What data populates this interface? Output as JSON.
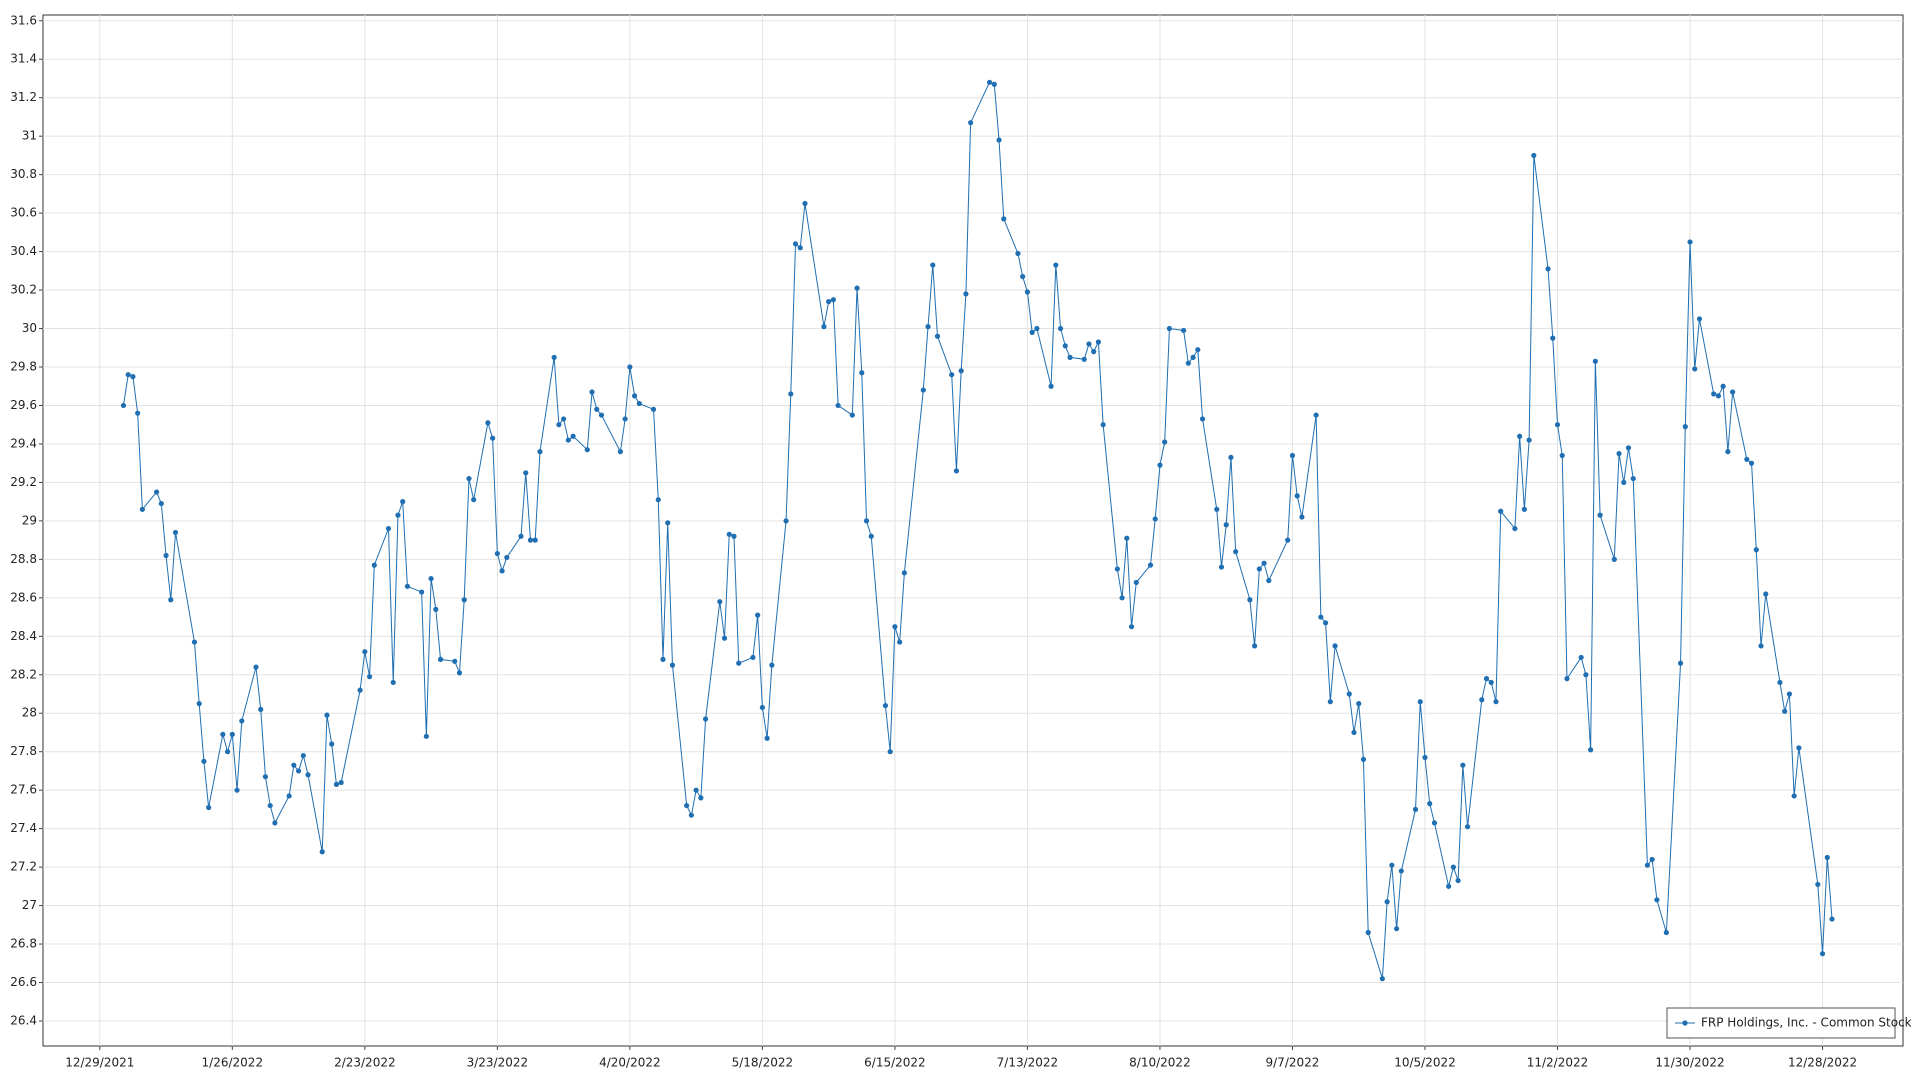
{
  "chart_data": {
    "type": "line",
    "x": [
      "2022-01-03",
      "2022-01-04",
      "2022-01-05",
      "2022-01-06",
      "2022-01-07",
      "2022-01-10",
      "2022-01-11",
      "2022-01-12",
      "2022-01-13",
      "2022-01-14",
      "2022-01-18",
      "2022-01-19",
      "2022-01-20",
      "2022-01-21",
      "2022-01-24",
      "2022-01-25",
      "2022-01-26",
      "2022-01-27",
      "2022-01-28",
      "2022-01-31",
      "2022-02-01",
      "2022-02-02",
      "2022-02-03",
      "2022-02-04",
      "2022-02-07",
      "2022-02-08",
      "2022-02-09",
      "2022-02-10",
      "2022-02-11",
      "2022-02-14",
      "2022-02-15",
      "2022-02-16",
      "2022-02-17",
      "2022-02-18",
      "2022-02-22",
      "2022-02-23",
      "2022-02-24",
      "2022-02-25",
      "2022-02-28",
      "2022-03-01",
      "2022-03-02",
      "2022-03-03",
      "2022-03-04",
      "2022-03-07",
      "2022-03-08",
      "2022-03-09",
      "2022-03-10",
      "2022-03-11",
      "2022-03-14",
      "2022-03-15",
      "2022-03-16",
      "2022-03-17",
      "2022-03-18",
      "2022-03-21",
      "2022-03-22",
      "2022-03-23",
      "2022-03-24",
      "2022-03-25",
      "2022-03-28",
      "2022-03-29",
      "2022-03-30",
      "2022-03-31",
      "2022-04-01",
      "2022-04-04",
      "2022-04-05",
      "2022-04-06",
      "2022-04-07",
      "2022-04-08",
      "2022-04-11",
      "2022-04-12",
      "2022-04-13",
      "2022-04-14",
      "2022-04-18",
      "2022-04-19",
      "2022-04-20",
      "2022-04-21",
      "2022-04-22",
      "2022-04-25",
      "2022-04-26",
      "2022-04-27",
      "2022-04-28",
      "2022-04-29",
      "2022-05-02",
      "2022-05-03",
      "2022-05-04",
      "2022-05-05",
      "2022-05-06",
      "2022-05-09",
      "2022-05-10",
      "2022-05-11",
      "2022-05-12",
      "2022-05-13",
      "2022-05-16",
      "2022-05-17",
      "2022-05-18",
      "2022-05-19",
      "2022-05-20",
      "2022-05-23",
      "2022-05-24",
      "2022-05-25",
      "2022-05-26",
      "2022-05-27",
      "2022-05-31",
      "2022-06-01",
      "2022-06-02",
      "2022-06-03",
      "2022-06-06",
      "2022-06-07",
      "2022-06-08",
      "2022-06-09",
      "2022-06-10",
      "2022-06-13",
      "2022-06-14",
      "2022-06-15",
      "2022-06-16",
      "2022-06-17",
      "2022-06-21",
      "2022-06-22",
      "2022-06-23",
      "2022-06-24",
      "2022-06-27",
      "2022-06-28",
      "2022-06-29",
      "2022-06-30",
      "2022-07-01",
      "2022-07-05",
      "2022-07-06",
      "2022-07-07",
      "2022-07-08",
      "2022-07-11",
      "2022-07-12",
      "2022-07-13",
      "2022-07-14",
      "2022-07-15",
      "2022-07-18",
      "2022-07-19",
      "2022-07-20",
      "2022-07-21",
      "2022-07-22",
      "2022-07-25",
      "2022-07-26",
      "2022-07-27",
      "2022-07-28",
      "2022-07-29",
      "2022-08-01",
      "2022-08-02",
      "2022-08-03",
      "2022-08-04",
      "2022-08-05",
      "2022-08-08",
      "2022-08-09",
      "2022-08-10",
      "2022-08-11",
      "2022-08-12",
      "2022-08-15",
      "2022-08-16",
      "2022-08-17",
      "2022-08-18",
      "2022-08-19",
      "2022-08-22",
      "2022-08-23",
      "2022-08-24",
      "2022-08-25",
      "2022-08-26",
      "2022-08-29",
      "2022-08-30",
      "2022-08-31",
      "2022-09-01",
      "2022-09-02",
      "2022-09-06",
      "2022-09-07",
      "2022-09-08",
      "2022-09-09",
      "2022-09-12",
      "2022-09-13",
      "2022-09-14",
      "2022-09-15",
      "2022-09-16",
      "2022-09-19",
      "2022-09-20",
      "2022-09-21",
      "2022-09-22",
      "2022-09-23",
      "2022-09-26",
      "2022-09-27",
      "2022-09-28",
      "2022-09-29",
      "2022-09-30",
      "2022-10-03",
      "2022-10-04",
      "2022-10-05",
      "2022-10-06",
      "2022-10-07",
      "2022-10-10",
      "2022-10-11",
      "2022-10-12",
      "2022-10-13",
      "2022-10-14",
      "2022-10-17",
      "2022-10-18",
      "2022-10-19",
      "2022-10-20",
      "2022-10-21",
      "2022-10-24",
      "2022-10-25",
      "2022-10-26",
      "2022-10-27",
      "2022-10-28",
      "2022-10-31",
      "2022-11-01",
      "2022-11-02",
      "2022-11-03",
      "2022-11-04",
      "2022-11-07",
      "2022-11-08",
      "2022-11-09",
      "2022-11-10",
      "2022-11-11",
      "2022-11-14",
      "2022-11-15",
      "2022-11-16",
      "2022-11-17",
      "2022-11-18",
      "2022-11-21",
      "2022-11-22",
      "2022-11-23",
      "2022-11-25",
      "2022-11-28",
      "2022-11-29",
      "2022-11-30",
      "2022-12-01",
      "2022-12-02",
      "2022-12-05",
      "2022-12-06",
      "2022-12-07",
      "2022-12-08",
      "2022-12-09",
      "2022-12-12",
      "2022-12-13",
      "2022-12-14",
      "2022-12-15",
      "2022-12-16",
      "2022-12-19",
      "2022-12-20",
      "2022-12-21",
      "2022-12-22",
      "2022-12-23",
      "2022-12-27",
      "2022-12-28",
      "2022-12-29",
      "2022-12-30"
    ],
    "series": [
      {
        "name": "FRP Holdings, Inc. - Common Stock",
        "color": "#1f6fb2",
        "values": [
          29.6,
          29.76,
          29.75,
          29.56,
          29.06,
          29.15,
          29.09,
          28.82,
          28.59,
          28.94,
          28.37,
          28.05,
          27.75,
          27.51,
          27.89,
          27.8,
          27.89,
          27.6,
          27.96,
          28.24,
          28.02,
          27.67,
          27.52,
          27.43,
          27.57,
          27.73,
          27.7,
          27.78,
          27.68,
          27.28,
          27.99,
          27.84,
          27.63,
          27.64,
          28.12,
          28.32,
          28.19,
          28.77,
          28.96,
          28.16,
          29.03,
          29.1,
          28.66,
          28.63,
          27.88,
          28.7,
          28.54,
          28.28,
          28.27,
          28.21,
          28.59,
          29.22,
          29.11,
          29.51,
          29.43,
          28.83,
          28.74,
          28.81,
          28.92,
          29.25,
          28.9,
          28.9,
          29.36,
          29.85,
          29.5,
          29.53,
          29.42,
          29.44,
          29.37,
          29.67,
          29.58,
          29.55,
          29.36,
          29.53,
          29.8,
          29.65,
          29.61,
          29.58,
          29.11,
          28.28,
          28.99,
          28.25,
          27.52,
          27.47,
          27.6,
          27.56,
          27.97,
          28.58,
          28.39,
          28.93,
          28.92,
          28.26,
          28.29,
          28.51,
          28.03,
          27.87,
          28.25,
          29.0,
          29.66,
          30.44,
          30.42,
          30.65,
          30.01,
          30.14,
          30.15,
          29.6,
          29.55,
          30.21,
          29.77,
          29.0,
          28.92,
          28.04,
          27.8,
          28.45,
          28.37,
          28.73,
          29.68,
          30.01,
          30.33,
          29.96,
          29.76,
          29.26,
          29.78,
          30.18,
          31.07,
          31.28,
          31.27,
          30.98,
          30.57,
          30.39,
          30.27,
          30.19,
          29.98,
          30.0,
          29.7,
          30.33,
          30.0,
          29.91,
          29.85,
          29.84,
          29.92,
          29.88,
          29.93,
          29.5,
          28.75,
          28.6,
          28.91,
          28.45,
          28.68,
          28.77,
          29.01,
          29.29,
          29.41,
          30.0,
          29.99,
          29.82,
          29.85,
          29.89,
          29.53,
          29.06,
          28.76,
          28.98,
          29.33,
          28.84,
          28.59,
          28.35,
          28.75,
          28.78,
          28.69,
          28.9,
          29.34,
          29.13,
          29.02,
          29.55,
          28.5,
          28.47,
          28.06,
          28.35,
          28.1,
          27.9,
          28.05,
          27.76,
          26.86,
          26.62,
          27.02,
          27.21,
          26.88,
          27.18,
          27.5,
          28.06,
          27.77,
          27.53,
          27.43,
          27.1,
          27.2,
          27.13,
          27.73,
          27.41,
          28.07,
          28.18,
          28.16,
          28.06,
          29.05,
          28.96,
          29.44,
          29.06,
          29.42,
          30.9,
          30.31,
          29.95,
          29.5,
          29.34,
          28.18,
          28.29,
          28.2,
          27.81,
          29.83,
          29.03,
          28.8,
          29.35,
          29.2,
          29.38,
          29.22,
          27.21,
          27.24,
          27.03,
          26.86,
          28.26,
          29.49,
          30.45,
          29.79,
          30.05,
          29.66,
          29.65,
          29.7,
          29.36,
          29.67,
          29.32,
          29.3,
          28.85,
          28.35,
          28.62,
          28.16,
          28.01,
          28.1,
          27.57,
          27.82,
          27.11,
          26.75,
          27.25,
          26.93
        ]
      }
    ],
    "xlim": [
      "2021-12-17",
      "2023-01-14"
    ],
    "xticks": [
      {
        "value": "2021-12-29",
        "label": "12/29/2021"
      },
      {
        "value": "2022-01-26",
        "label": "1/26/2022"
      },
      {
        "value": "2022-02-23",
        "label": "2/23/2022"
      },
      {
        "value": "2022-03-23",
        "label": "3/23/2022"
      },
      {
        "value": "2022-04-20",
        "label": "4/20/2022"
      },
      {
        "value": "2022-05-18",
        "label": "5/18/2022"
      },
      {
        "value": "2022-06-15",
        "label": "6/15/2022"
      },
      {
        "value": "2022-07-13",
        "label": "7/13/2022"
      },
      {
        "value": "2022-08-10",
        "label": "8/10/2022"
      },
      {
        "value": "2022-09-07",
        "label": "9/7/2022"
      },
      {
        "value": "2022-10-05",
        "label": "10/5/2022"
      },
      {
        "value": "2022-11-02",
        "label": "11/2/2022"
      },
      {
        "value": "2022-11-30",
        "label": "11/30/2022"
      },
      {
        "value": "2022-12-28",
        "label": "12/28/2022"
      }
    ],
    "ylim": [
      26.27,
      31.63
    ],
    "yticks": [
      26.4,
      26.6,
      26.8,
      27,
      27.2,
      27.4,
      27.6,
      27.8,
      28,
      28.2,
      28.4,
      28.6,
      28.8,
      29,
      29.2,
      29.4,
      29.6,
      29.8,
      30,
      30.2,
      30.4,
      30.6,
      30.8,
      31,
      31.2,
      31.4,
      31.6
    ],
    "grid": true,
    "legend": "lower right"
  }
}
